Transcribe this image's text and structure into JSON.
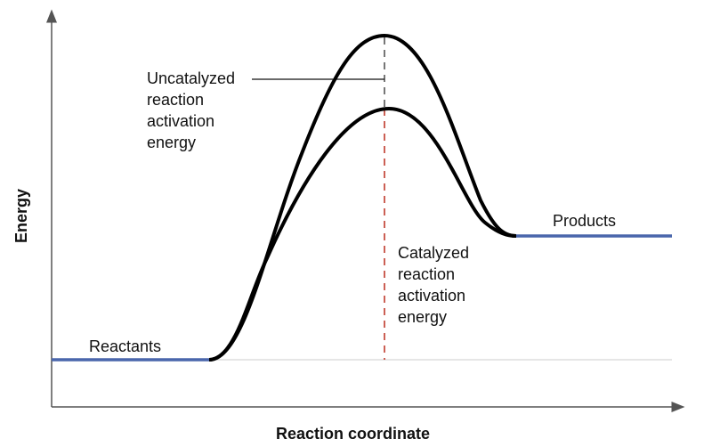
{
  "axes": {
    "x_label": "Reaction coordinate",
    "y_label": "Energy"
  },
  "labels": {
    "reactants": "Reactants",
    "products": "Products",
    "uncatalyzed": "Uncatalyzed\nreaction\nactivation\nenergy",
    "catalyzed": "Catalyzed\nreaction\nactivation\nenergy"
  },
  "colors": {
    "level_lines": "#4a66ac",
    "catalyzed_marker": "#c0392b",
    "uncatalyzed_marker": "#555555",
    "curves": "#000000"
  }
}
